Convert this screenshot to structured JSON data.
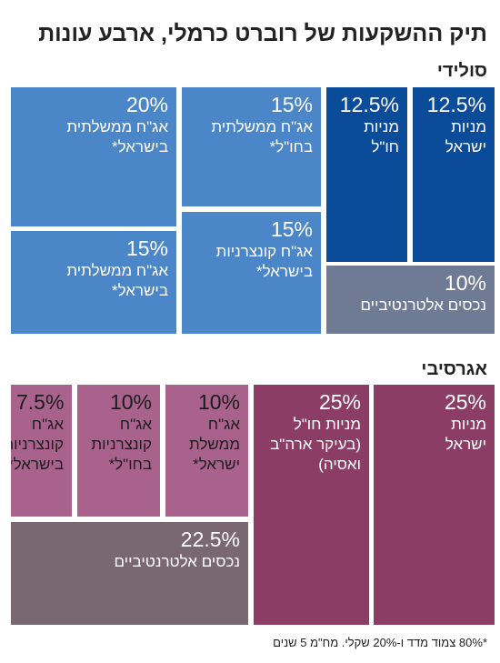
{
  "chart_data": {
    "type": "treemap",
    "title": "תיק ההשקעות של רוברט כרמלי, ארבע עונות",
    "portfolios": [
      {
        "name": "סולידי",
        "items": [
          {
            "value": "12.5%",
            "label": "מניות\nישראל",
            "color": "#0a4c9a",
            "text_color": "#ffffff"
          },
          {
            "value": "12.5%",
            "label": "מניות\nחו\"ל",
            "color": "#0a4c9a",
            "text_color": "#ffffff"
          },
          {
            "value": "10%",
            "label": "נכסים אלטרנטיביים",
            "color": "#6f7b94",
            "text_color": "#ffffff"
          },
          {
            "value": "15%",
            "label": "אג\"ח ממשלתית\nבחו\"ל*",
            "color": "#4a86c8",
            "text_color": "#ffffff"
          },
          {
            "value": "15%",
            "label": "אג\"ח קונצרניות\nבישראל*",
            "color": "#4a86c8",
            "text_color": "#ffffff"
          },
          {
            "value": "20%",
            "label": "אג\"ח ממשלתית\nבישראל*",
            "color": "#4a86c8",
            "text_color": "#ffffff"
          },
          {
            "value": "15%",
            "label": "אג\"ח ממשלתית\nבישראל*",
            "color": "#4a86c8",
            "text_color": "#ffffff"
          }
        ]
      },
      {
        "name": "אגרסיבי",
        "items": [
          {
            "value": "25%",
            "label": "מניות\nישראל",
            "color": "#8b3d66",
            "text_color": "#ffffff"
          },
          {
            "value": "25%",
            "label": "מניות חו\"ל\n(בעיקר ארה\"ב\nואסיה)",
            "color": "#8b3d66",
            "text_color": "#ffffff"
          },
          {
            "value": "10%",
            "label": "אג\"ח\nממשלת\nישראל*",
            "color": "#a9628c",
            "text_color": "#1c1c1c"
          },
          {
            "value": "10%",
            "label": "אג\"ח\nקונצרניות\nבחו\"ל*",
            "color": "#a9628c",
            "text_color": "#1c1c1c"
          },
          {
            "value": "7.5%",
            "label": "אג\"ח\nקונצרניות\nבישראל*",
            "color": "#a9628c",
            "text_color": "#1c1c1c"
          },
          {
            "value": "22.5%",
            "label": "נכסים אלטרנטיביים",
            "color": "#7a6870",
            "text_color": "#ffffff"
          }
        ]
      }
    ],
    "footnote": "*80% צמוד מדד ו-20% שקלי. מח\"מ 5 שנים"
  }
}
